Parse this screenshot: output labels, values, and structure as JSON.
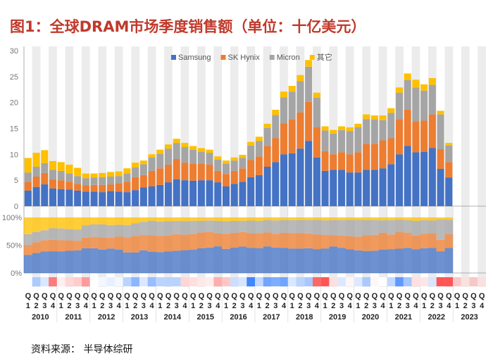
{
  "title": "图1：全球DRAM市场季度销售额（单位：十亿美元）",
  "source": "资料来源： 半导体综研",
  "chart_data": {
    "type": "bar",
    "stacked": true,
    "title": "图1：全球DRAM市场季度销售额（单位：十亿美元）",
    "ylabel": "十亿美元",
    "ylim": [
      0,
      30
    ],
    "yticks": [
      "0",
      "5",
      "10",
      "15",
      "20",
      "25",
      "30"
    ],
    "pct_ticks": [
      "100%",
      "50%",
      "0%"
    ],
    "quarter_prefix": "Q",
    "quarter_numbers": [
      "1",
      "2",
      "3",
      "4"
    ],
    "years": [
      "2010",
      "2011",
      "2012",
      "2013",
      "2014",
      "2015",
      "2016",
      "2017",
      "2018",
      "2019",
      "2020",
      "2021",
      "2022",
      "2023"
    ],
    "categories": [
      "2010Q1",
      "2010Q2",
      "2010Q3",
      "2010Q4",
      "2011Q1",
      "2011Q2",
      "2011Q3",
      "2011Q4",
      "2012Q1",
      "2012Q2",
      "2012Q3",
      "2012Q4",
      "2013Q1",
      "2013Q2",
      "2013Q3",
      "2013Q4",
      "2014Q1",
      "2014Q2",
      "2014Q3",
      "2014Q4",
      "2015Q1",
      "2015Q2",
      "2015Q3",
      "2015Q4",
      "2016Q1",
      "2016Q2",
      "2016Q3",
      "2016Q4",
      "2017Q1",
      "2017Q2",
      "2017Q3",
      "2017Q4",
      "2018Q1",
      "2018Q2",
      "2018Q3",
      "2018Q4",
      "2019Q1",
      "2019Q2",
      "2019Q3",
      "2019Q4",
      "2020Q1",
      "2020Q2",
      "2020Q3",
      "2020Q4",
      "2021Q1",
      "2021Q2",
      "2021Q3",
      "2021Q4",
      "2022Q1",
      "2022Q2",
      "2022Q3",
      "2022Q4",
      "2023Q1",
      "2023Q2",
      "2023Q3",
      "2023Q4"
    ],
    "series": [
      {
        "name": "Samsung",
        "color": "#4472c4",
        "values": [
          3.0,
          3.7,
          4.2,
          3.4,
          3.3,
          3.2,
          3.0,
          2.8,
          2.8,
          2.7,
          2.9,
          2.8,
          2.7,
          3.1,
          3.6,
          3.8,
          4.1,
          4.6,
          5.2,
          5.0,
          4.9,
          5.0,
          5.0,
          4.6,
          3.8,
          4.3,
          4.7,
          5.6,
          6.0,
          7.6,
          8.5,
          10.0,
          10.2,
          11.1,
          12.6,
          9.4,
          6.8,
          7.0,
          7.0,
          6.5,
          6.5,
          7.0,
          7.0,
          7.3,
          8.1,
          10.0,
          11.6,
          10.4,
          10.5,
          11.2,
          7.2,
          5.5,
          null,
          null,
          null,
          null
        ]
      },
      {
        "name": "SK Hynix",
        "color": "#ed7d31",
        "values": [
          1.7,
          2.0,
          2.2,
          1.8,
          1.7,
          1.5,
          1.3,
          1.2,
          1.3,
          1.4,
          1.3,
          1.6,
          2.0,
          2.5,
          2.4,
          3.0,
          3.2,
          3.4,
          3.9,
          3.4,
          3.3,
          3.2,
          3.0,
          2.2,
          2.4,
          2.5,
          2.6,
          3.3,
          3.6,
          4.0,
          4.6,
          6.0,
          6.5,
          7.0,
          7.5,
          5.8,
          3.8,
          3.0,
          3.4,
          3.5,
          3.9,
          5.0,
          5.0,
          5.4,
          5.0,
          6.8,
          7.0,
          6.0,
          6.0,
          6.5,
          3.8,
          3.0,
          null,
          null,
          null,
          null
        ]
      },
      {
        "name": "Micron",
        "color": "#a5a5a5",
        "values": [
          1.8,
          1.9,
          1.9,
          1.8,
          1.8,
          1.6,
          1.5,
          1.4,
          1.4,
          1.5,
          1.5,
          1.4,
          1.6,
          1.9,
          2.1,
          2.6,
          2.8,
          3.1,
          3.1,
          3.0,
          2.7,
          2.3,
          2.3,
          2.2,
          2.0,
          2.0,
          2.0,
          2.8,
          3.0,
          3.5,
          4.5,
          5.0,
          5.4,
          6.0,
          6.8,
          5.7,
          4.0,
          4.0,
          4.3,
          4.5,
          4.8,
          4.8,
          4.7,
          3.9,
          4.9,
          5.1,
          5.7,
          6.5,
          5.8,
          5.7,
          6.7,
          3.2,
          null,
          null,
          null,
          null
        ]
      },
      {
        "name": "其它",
        "color": "#ffc000",
        "values": [
          2.8,
          2.7,
          2.5,
          1.7,
          1.7,
          1.7,
          1.6,
          0.9,
          0.8,
          0.8,
          0.9,
          0.9,
          1.0,
          0.9,
          0.7,
          0.6,
          0.8,
          0.8,
          0.8,
          0.8,
          0.7,
          0.7,
          0.6,
          0.6,
          0.6,
          0.6,
          0.6,
          0.7,
          0.8,
          0.8,
          1.0,
          1.1,
          1.1,
          1.2,
          1.3,
          1.0,
          0.8,
          0.7,
          0.7,
          0.7,
          0.7,
          0.9,
          0.8,
          0.9,
          0.9,
          1.0,
          1.3,
          1.5,
          1.2,
          1.3,
          0.7,
          0.5,
          null,
          null,
          null,
          null
        ]
      }
    ]
  }
}
